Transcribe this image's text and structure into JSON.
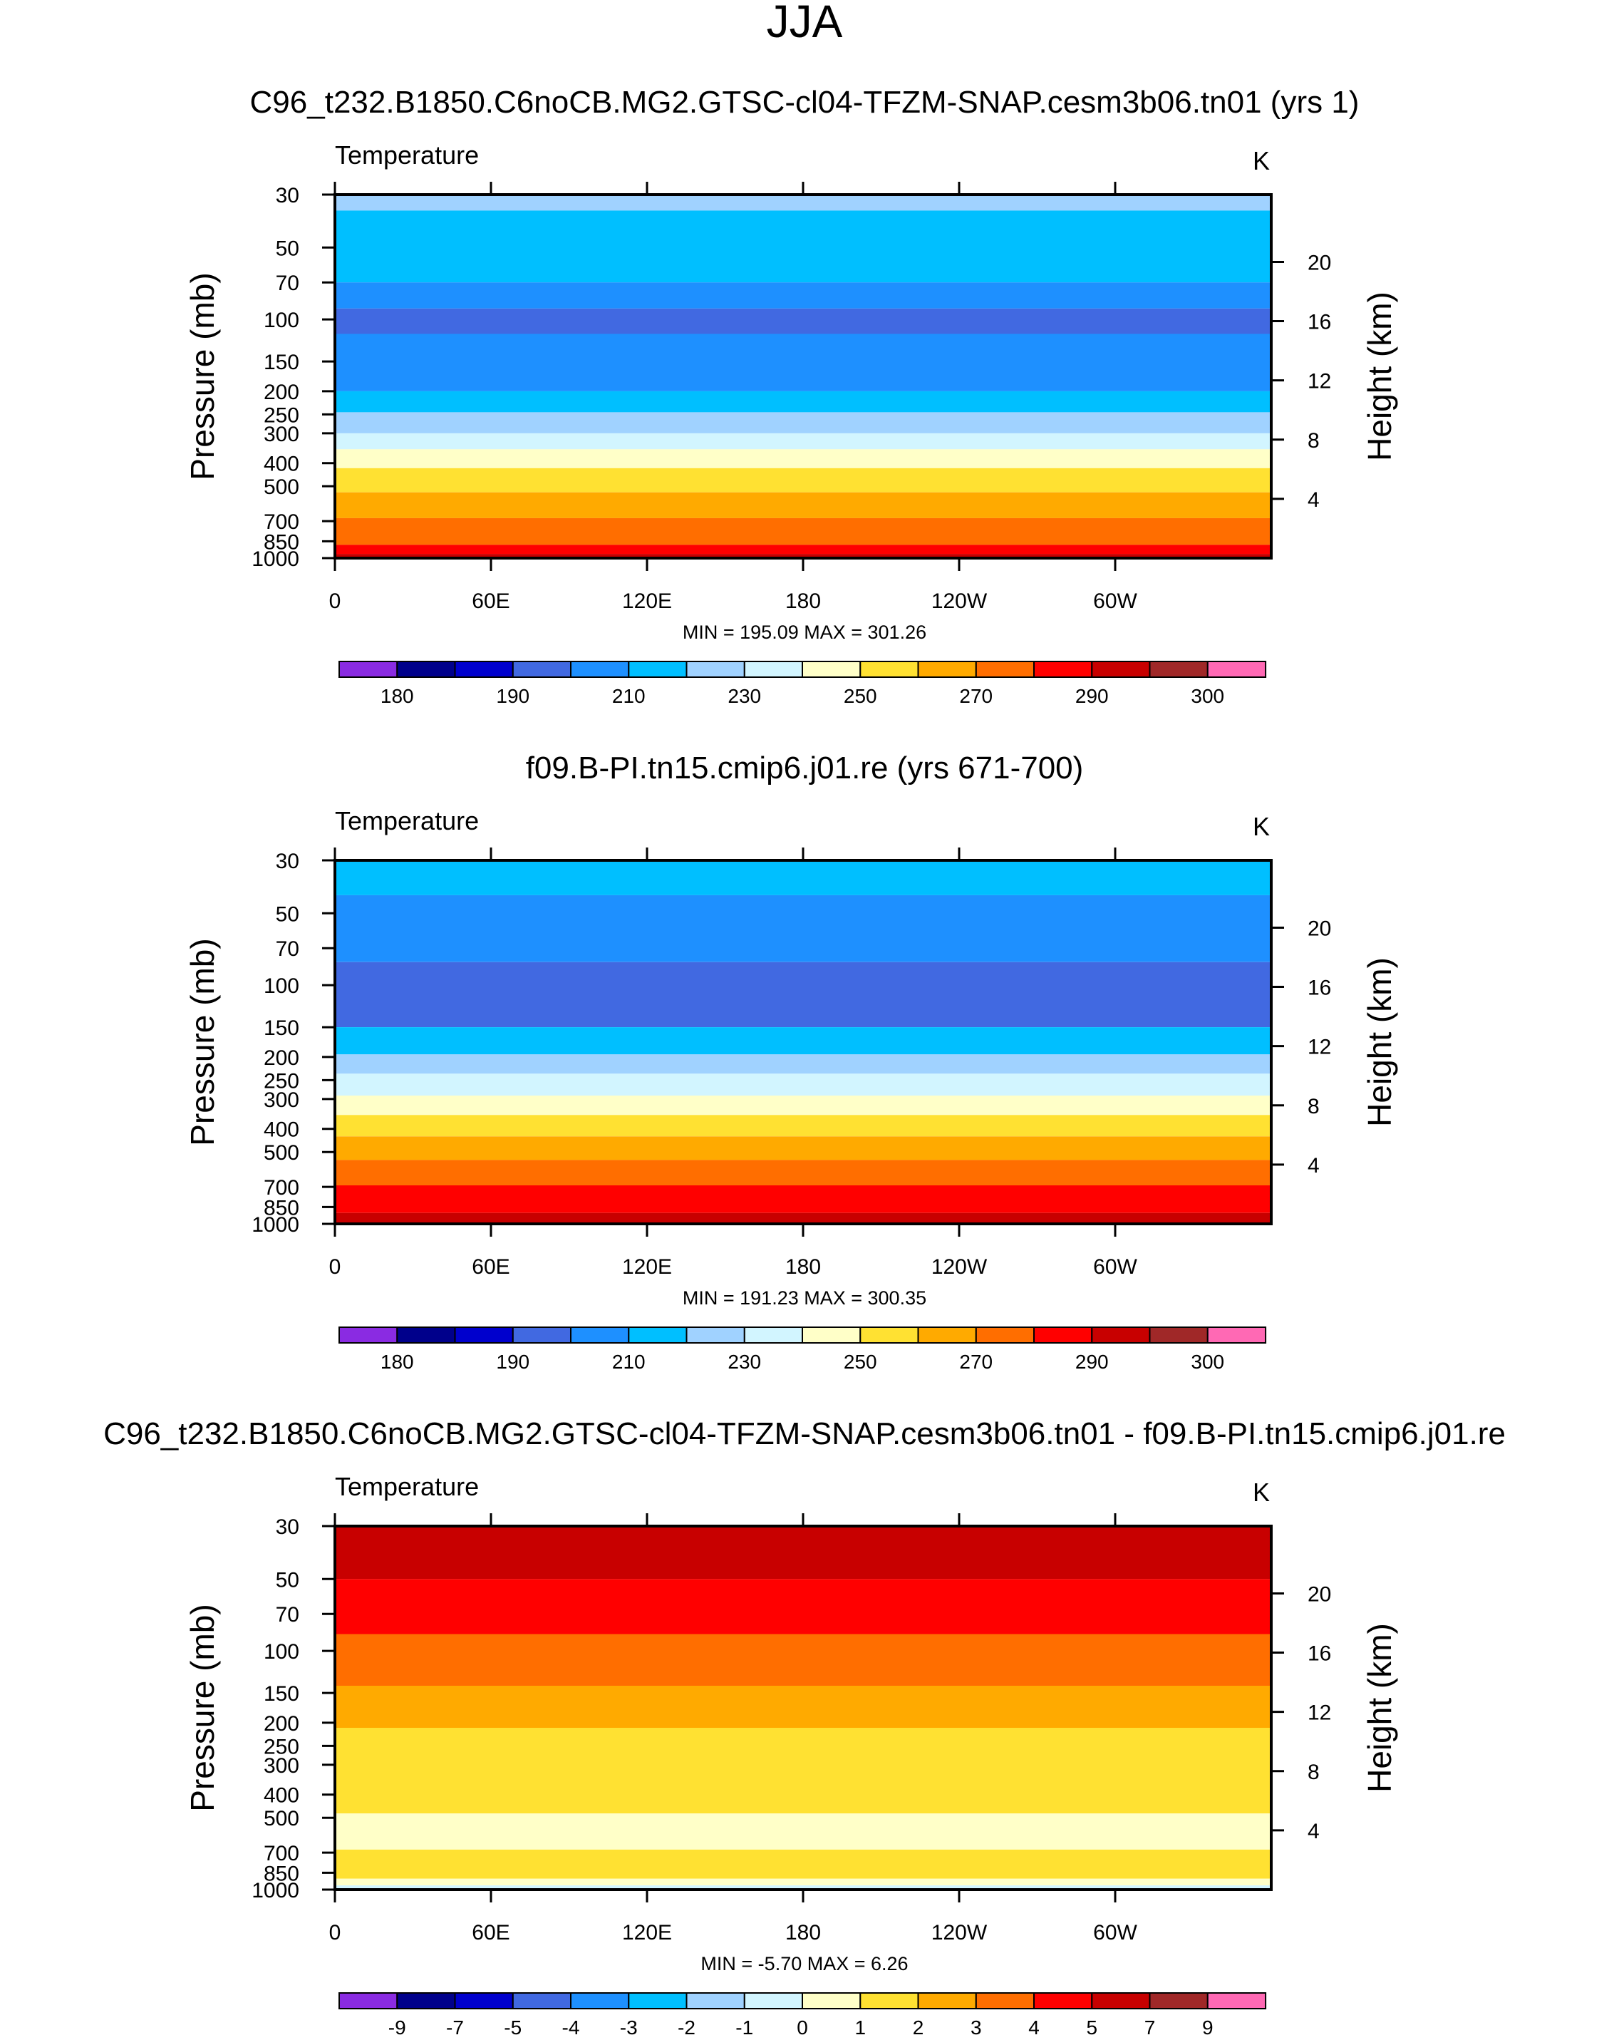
{
  "figure": {
    "season": "JJA",
    "variable_label": "Temperature",
    "units": "K",
    "y_left_label": "Pressure (mb)",
    "y_right_label": "Height (km)"
  },
  "colors": {
    "abs_levels": [
      "#8a2be2",
      "#00008b",
      "#0000cd",
      "#4169e1",
      "#1e90ff",
      "#00bfff",
      "#a0d2ff",
      "#d2f5ff",
      "#ffffc8",
      "#ffe132",
      "#ffaa00",
      "#ff6e00",
      "#ff0000",
      "#c80000",
      "#a02828",
      "#ff69b4"
    ],
    "diff_levels": [
      "#8a2be2",
      "#00008b",
      "#0000cd",
      "#4169e1",
      "#1e90ff",
      "#00bfff",
      "#a0d2ff",
      "#d2f5ff",
      "#ffffc8",
      "#ffe132",
      "#ffaa00",
      "#ff6e00",
      "#ff0000",
      "#c80000",
      "#a02828",
      "#ff69b4"
    ]
  },
  "chart_data": [
    {
      "type": "heatmap",
      "title": "C96_t232.B1850.C6noCB.MG2.GTSC-cl04-TFZM-SNAP.cesm3b06.tn01 (yrs 1)",
      "subtitle": "Temperature",
      "units": "K",
      "xlabel": "",
      "ylabel": "Pressure (mb)",
      "ylabel_right": "Height (km)",
      "x_ticks": [
        "0",
        "60E",
        "120E",
        "180",
        "120W",
        "60W"
      ],
      "x_tick_values": [
        0,
        60,
        120,
        180,
        240,
        300
      ],
      "xlim": [
        0,
        360
      ],
      "y_ticks": [
        "30",
        "50",
        "70",
        "100",
        "150",
        "200",
        "250",
        "300",
        "400",
        "500",
        "700",
        "850",
        "1000"
      ],
      "y_tick_values": [
        30,
        50,
        70,
        100,
        150,
        200,
        250,
        300,
        400,
        500,
        700,
        850,
        1000
      ],
      "ylim": [
        1000,
        30
      ],
      "right_ticks": [
        "20",
        "16",
        "12",
        "8",
        "4"
      ],
      "right_tick_values": [
        20,
        16,
        12,
        8,
        4
      ],
      "stats": "MIN = 195.09  MAX = 301.26",
      "colorbar_labels": [
        "180",
        "190",
        "210",
        "230",
        "250",
        "270",
        "290",
        "300"
      ],
      "colorbar_levels": [
        175,
        180,
        185,
        190,
        200,
        210,
        220,
        230,
        240,
        250,
        260,
        270,
        280,
        290,
        295,
        300
      ],
      "band_tops_mb": [
        30,
        35,
        70,
        90,
        115,
        200,
        245,
        300,
        350,
        420,
        530,
        680,
        880,
        960
      ],
      "band_classes": [
        6,
        5,
        4,
        3,
        4,
        5,
        6,
        7,
        8,
        9,
        10,
        11,
        12,
        13
      ]
    },
    {
      "type": "heatmap",
      "title": "f09.B-PI.tn15.cmip6.j01.re (yrs 671-700)",
      "subtitle": "Temperature",
      "units": "K",
      "xlabel": "",
      "ylabel": "Pressure (mb)",
      "ylabel_right": "Height (km)",
      "x_ticks": [
        "0",
        "60E",
        "120E",
        "180",
        "120W",
        "60W"
      ],
      "x_tick_values": [
        0,
        60,
        120,
        180,
        240,
        300
      ],
      "xlim": [
        0,
        360
      ],
      "y_ticks": [
        "30",
        "50",
        "70",
        "100",
        "150",
        "200",
        "250",
        "300",
        "400",
        "500",
        "700",
        "850",
        "1000"
      ],
      "y_tick_values": [
        30,
        50,
        70,
        100,
        150,
        200,
        250,
        300,
        400,
        500,
        700,
        850,
        1000
      ],
      "ylim": [
        1000,
        30
      ],
      "right_ticks": [
        "20",
        "16",
        "12",
        "8",
        "4"
      ],
      "right_tick_values": [
        20,
        16,
        12,
        8,
        4
      ],
      "stats": "MIN = 191.23  MAX = 300.35",
      "colorbar_labels": [
        "180",
        "190",
        "210",
        "230",
        "250",
        "270",
        "290",
        "300"
      ],
      "colorbar_levels": [
        175,
        180,
        185,
        190,
        200,
        210,
        220,
        230,
        240,
        250,
        260,
        270,
        280,
        290,
        295,
        300
      ],
      "band_tops_mb": [
        30,
        42,
        80,
        150,
        195,
        235,
        290,
        350,
        430,
        540,
        690,
        900
      ],
      "band_classes": [
        5,
        4,
        3,
        5,
        6,
        7,
        8,
        9,
        10,
        11,
        12,
        13
      ]
    },
    {
      "type": "heatmap",
      "title": "C96_t232.B1850.C6noCB.MG2.GTSC-cl04-TFZM-SNAP.cesm3b06.tn01 - f09.B-PI.tn15.cmip6.j01.re",
      "subtitle": "Temperature",
      "units": "K",
      "xlabel": "",
      "ylabel": "Pressure (mb)",
      "ylabel_right": "Height (km)",
      "x_ticks": [
        "0",
        "60E",
        "120E",
        "180",
        "120W",
        "60W"
      ],
      "x_tick_values": [
        0,
        60,
        120,
        180,
        240,
        300
      ],
      "xlim": [
        0,
        360
      ],
      "y_ticks": [
        "30",
        "50",
        "70",
        "100",
        "150",
        "200",
        "250",
        "300",
        "400",
        "500",
        "700",
        "850",
        "1000"
      ],
      "y_tick_values": [
        30,
        50,
        70,
        100,
        150,
        200,
        250,
        300,
        400,
        500,
        700,
        850,
        1000
      ],
      "ylim": [
        1000,
        30
      ],
      "right_ticks": [
        "20",
        "16",
        "12",
        "8",
        "4"
      ],
      "right_tick_values": [
        20,
        16,
        12,
        8,
        4
      ],
      "stats": "MIN = -5.70  MAX =  6.26",
      "colorbar_labels": [
        "-9",
        "-7",
        "-5",
        "-4",
        "-3",
        "-2",
        "-1",
        "0",
        "1",
        "2",
        "3",
        "4",
        "5",
        "7",
        "9"
      ],
      "colorbar_levels": [
        -9,
        -7,
        -5,
        -4,
        -3,
        -2,
        -1,
        0,
        1,
        2,
        3,
        4,
        5,
        7,
        9
      ],
      "band_tops_mb": [
        30,
        50,
        85,
        140,
        210,
        480,
        680,
        900,
        960
      ],
      "band_classes": [
        13,
        12,
        11,
        10,
        9,
        8,
        9,
        8,
        7
      ]
    }
  ]
}
